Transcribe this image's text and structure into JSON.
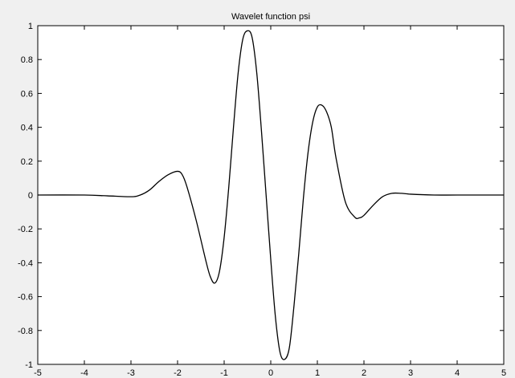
{
  "chart_data": {
    "type": "line",
    "title": "Wavelet function psi",
    "xlabel": "",
    "ylabel": "",
    "xlim": [
      -5,
      5
    ],
    "ylim": [
      -1,
      1
    ],
    "xticks": [
      -5,
      -4,
      -3,
      -2,
      -1,
      0,
      1,
      2,
      3,
      4,
      5
    ],
    "yticks": [
      -1,
      -0.8,
      -0.6,
      -0.4,
      -0.2,
      0,
      0.2,
      0.4,
      0.6,
      0.8,
      1
    ],
    "xtick_labels": [
      "-5",
      "-4",
      "-3",
      "-2",
      "-1",
      "0",
      "1",
      "2",
      "3",
      "4",
      "5"
    ],
    "ytick_labels": [
      "-1",
      "-0.8",
      "-0.6",
      "-0.4",
      "-0.2",
      "0",
      "0.2",
      "0.4",
      "0.6",
      "0.8",
      "1"
    ],
    "grid": false,
    "background": "#f0f0f0",
    "plot_background": "#ffffff",
    "line_color": "#000000",
    "series": [
      {
        "x": [
          -5,
          -4,
          -3.5,
          -3,
          -2.8,
          -2.6,
          -2.4,
          -2.2,
          -2.0,
          -1.9,
          -1.8,
          -1.6,
          -1.4,
          -1.3,
          -1.2,
          -1.1,
          -1.0,
          -0.9,
          -0.8,
          -0.7,
          -0.6,
          -0.5,
          -0.4,
          -0.3,
          -0.2,
          -0.1,
          0.0,
          0.1,
          0.2,
          0.3,
          0.4,
          0.5,
          0.6,
          0.7,
          0.8,
          0.9,
          1.0,
          1.1,
          1.2,
          1.3,
          1.4,
          1.6,
          1.8,
          1.9,
          2.0,
          2.2,
          2.4,
          2.6,
          2.8,
          3.0,
          3.5,
          4.0,
          5.0
        ],
        "y": [
          0,
          0,
          -0.005,
          -0.01,
          0.0,
          0.03,
          0.08,
          0.12,
          0.14,
          0.12,
          0.05,
          -0.15,
          -0.38,
          -0.48,
          -0.52,
          -0.45,
          -0.25,
          0.05,
          0.4,
          0.72,
          0.92,
          0.97,
          0.93,
          0.72,
          0.38,
          0.0,
          -0.38,
          -0.72,
          -0.93,
          -0.97,
          -0.9,
          -0.65,
          -0.35,
          -0.02,
          0.25,
          0.43,
          0.52,
          0.53,
          0.49,
          0.4,
          0.22,
          -0.04,
          -0.13,
          -0.135,
          -0.12,
          -0.06,
          -0.01,
          0.01,
          0.01,
          0.005,
          0.0,
          0.0,
          0.0
        ]
      }
    ]
  }
}
